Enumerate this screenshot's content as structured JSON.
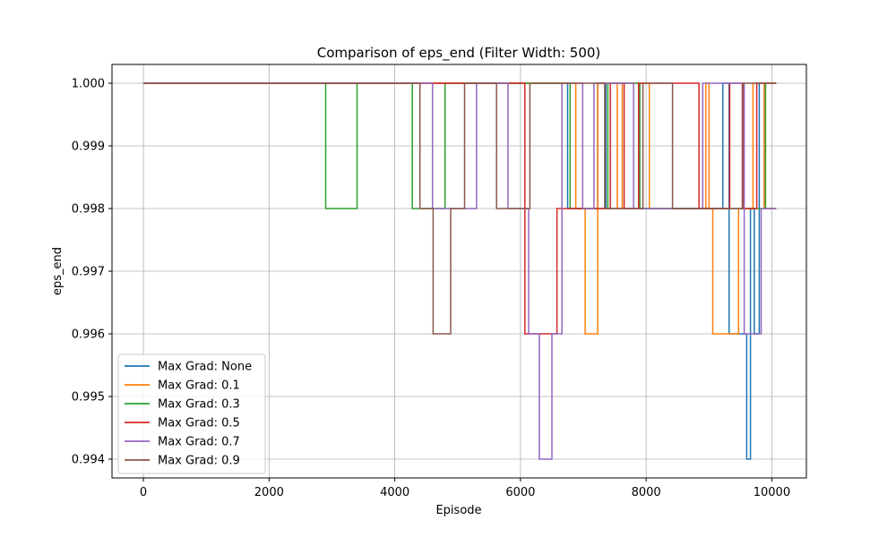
{
  "chart_data": {
    "type": "line",
    "title": "Comparison of eps_end (Filter Width: 500)",
    "xlabel": "Episode",
    "ylabel": "eps_end",
    "xlim": [
      -500,
      10550
    ],
    "ylim": [
      0.9937,
      1.0003
    ],
    "xticks": [
      0,
      2000,
      4000,
      6000,
      8000,
      10000
    ],
    "yticks": [
      0.994,
      0.995,
      0.996,
      0.997,
      0.998,
      0.999,
      1.0
    ],
    "ytick_labels": [
      "0.994",
      "0.995",
      "0.996",
      "0.997",
      "0.998",
      "0.999",
      "1.000"
    ],
    "grid": true,
    "legend_position": "lower-left",
    "series": [
      {
        "name": "Max Grad: None",
        "color": "#1f77b4",
        "x": [
          0,
          6750,
          6750,
          7230,
          7230,
          7360,
          7360,
          9220,
          9220,
          9320,
          9320,
          9600,
          9600,
          9660,
          9660,
          9720,
          9720,
          9800,
          9800,
          9880,
          9880,
          10070
        ],
        "y": [
          1.0,
          1.0,
          0.998,
          0.998,
          1.0,
          1.0,
          0.998,
          0.998,
          1.0,
          1.0,
          0.996,
          0.996,
          0.994,
          0.994,
          0.998,
          0.998,
          0.996,
          0.996,
          1.0,
          1.0,
          0.998,
          0.998
        ]
      },
      {
        "name": "Max Grad: 0.1",
        "color": "#ff7f0e",
        "x": [
          0,
          6880,
          6880,
          7030,
          7030,
          7230,
          7230,
          7540,
          7540,
          7620,
          7620,
          8050,
          8050,
          8950,
          8950,
          9000,
          9000,
          9060,
          9060,
          9470,
          9470,
          9700,
          9700,
          9880,
          9880,
          10070
        ],
        "y": [
          1.0,
          1.0,
          0.998,
          0.998,
          0.996,
          0.996,
          1.0,
          1.0,
          0.998,
          0.998,
          1.0,
          1.0,
          0.998,
          0.998,
          1.0,
          1.0,
          0.998,
          0.998,
          0.996,
          0.996,
          0.998,
          0.998,
          1.0,
          1.0,
          0.998,
          0.998
        ]
      },
      {
        "name": "Max Grad: 0.3",
        "color": "#2ca02c",
        "x": [
          0,
          2900,
          2900,
          3400,
          3400,
          4280,
          4280,
          4800,
          4800,
          6790,
          6790,
          7390,
          7390,
          7900,
          7900,
          9900,
          9900,
          10070
        ],
        "y": [
          1.0,
          1.0,
          0.998,
          0.998,
          1.0,
          1.0,
          0.998,
          0.998,
          1.0,
          1.0,
          0.998,
          0.998,
          1.0,
          1.0,
          0.998,
          0.998,
          1.0,
          1.0
        ]
      },
      {
        "name": "Max Grad: 0.5",
        "color": "#d62728",
        "x": [
          0,
          6070,
          6070,
          6580,
          6580,
          7430,
          7430,
          7650,
          7650,
          7880,
          7880,
          8840,
          8840,
          9330,
          9330,
          9530,
          9530,
          9760,
          9760,
          10070
        ],
        "y": [
          1.0,
          1.0,
          0.996,
          0.996,
          0.998,
          0.998,
          1.0,
          1.0,
          0.998,
          0.998,
          1.0,
          1.0,
          0.998,
          0.998,
          1.0,
          1.0,
          0.998,
          0.998,
          1.0,
          1.0
        ]
      },
      {
        "name": "Max Grad: 0.7",
        "color": "#9467bd",
        "x": [
          0,
          4600,
          4600,
          5300,
          5300,
          5800,
          5800,
          6130,
          6130,
          6300,
          6300,
          6500,
          6500,
          6660,
          6660,
          6990,
          6990,
          7170,
          7170,
          7800,
          7800,
          8320,
          8320,
          8900,
          8900,
          9560,
          9560,
          9830,
          9830,
          10070
        ],
        "y": [
          1.0,
          1.0,
          0.998,
          0.998,
          1.0,
          1.0,
          0.998,
          0.998,
          0.996,
          0.996,
          0.994,
          0.994,
          0.996,
          0.996,
          1.0,
          1.0,
          0.998,
          0.998,
          1.0,
          1.0,
          0.998,
          0.998,
          0.998,
          0.998,
          1.0,
          1.0,
          0.996,
          0.996,
          0.998,
          0.998
        ]
      },
      {
        "name": "Max Grad: 0.9",
        "color": "#8c564b",
        "x": [
          0,
          4400,
          4400,
          4610,
          4610,
          4890,
          4890,
          5110,
          5110,
          5620,
          5620,
          6150,
          6150,
          7340,
          7340,
          7950,
          7950,
          8420,
          8420,
          9540,
          9540,
          10070
        ],
        "y": [
          1.0,
          1.0,
          0.998,
          0.998,
          0.996,
          0.996,
          0.998,
          0.998,
          1.0,
          1.0,
          0.998,
          0.998,
          1.0,
          1.0,
          0.998,
          0.998,
          1.0,
          1.0,
          0.998,
          0.998,
          1.0,
          1.0
        ]
      }
    ]
  }
}
